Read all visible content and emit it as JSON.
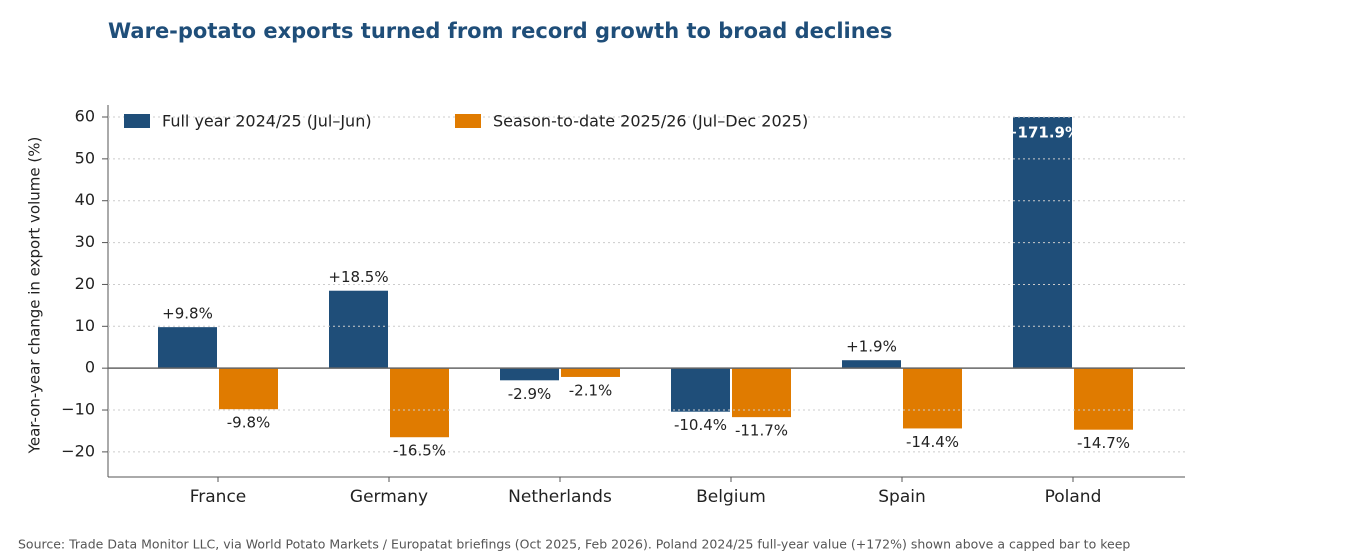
{
  "chart_data": {
    "type": "bar",
    "title": "Ware-potato exports turned from record growth to broad declines",
    "y_label": "Year-on-year change in export volume (%)",
    "source": "Source: Trade Data Monitor LLC, via World Potato Markets / Europatat briefings (Oct 2025, Feb 2026). Poland 2024/25 full-year value (+172%) shown above a capped bar to keep",
    "categories": [
      "France",
      "Germany",
      "Netherlands",
      "Belgium",
      "Spain",
      "Poland"
    ],
    "series": [
      {
        "name": "Full year 2024/25 (Jul–Jun)",
        "color": "#1f4e79",
        "values": [
          9.8,
          18.5,
          -2.9,
          -10.4,
          1.9,
          171.9
        ],
        "value_labels": [
          "+9.8%",
          "+18.5%",
          "-2.9%",
          "-10.4%",
          "+1.9%",
          "+171.9%"
        ]
      },
      {
        "name": "Season-to-date 2025/26 (Jul–Dec 2025)",
        "color": "#e07b00",
        "values": [
          -9.8,
          -16.5,
          -2.1,
          -11.7,
          -14.4,
          -14.7
        ],
        "value_labels": [
          "-9.8%",
          "-16.5%",
          "-2.1%",
          "-11.7%",
          "-14.4%",
          "-14.7%"
        ]
      }
    ],
    "ylim": [
      -26,
      60
    ],
    "yticks": [
      {
        "value": -20,
        "label": "−20"
      },
      {
        "value": -10,
        "label": "−10"
      },
      0,
      10,
      20,
      30,
      40,
      50,
      60
    ],
    "grid": true,
    "legend": "top-left"
  }
}
